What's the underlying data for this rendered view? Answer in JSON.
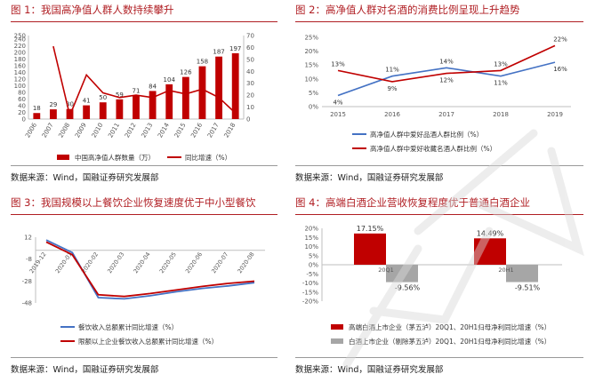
{
  "panels": {
    "p1": {
      "title": "图 1：我国高净值人群人数持续攀升",
      "source": "数据来源：Wind，国融证券研究发展部"
    },
    "p2": {
      "title": "图 2：高净值人群对名酒的消费比例呈现上升趋势",
      "source": "数据来源：Wind，国融证券研究发展部"
    },
    "p3": {
      "title": "图 3：我国规模以上餐饮企业恢复速度优于中小型餐饮",
      "source": "数据来源：Wind，国融证券研究发展部"
    },
    "p4": {
      "title": "图 4：高端白酒企业营收恢复程度优于普通白酒企业",
      "source": "数据来源：Wind，国融证券研究发展部"
    }
  },
  "colors": {
    "red": "#c00000",
    "blue": "#4472c4",
    "gray": "#a6a6a6",
    "title_red": "#b01e23"
  },
  "chart_data": [
    {
      "id": "fig1",
      "type": "bar",
      "categories": [
        "2006",
        "2007",
        "2008",
        "2009",
        "2010",
        "2011",
        "2012",
        "2013",
        "2014",
        "2015",
        "2016",
        "2017",
        "2018"
      ],
      "series": [
        {
          "name": "中国高净值人群数量（万）",
          "type": "bar",
          "axis": "left",
          "values": [
            18,
            29,
            30,
            41,
            50,
            59,
            71,
            84,
            104,
            126,
            158,
            187,
            197
          ]
        },
        {
          "name": "同比增速（%）",
          "type": "line",
          "axis": "right",
          "values": [
            null,
            61,
            3,
            37,
            22,
            18,
            20,
            18,
            24,
            21,
            25,
            18,
            5
          ]
        }
      ],
      "yticks_left": [
        "0",
        "20",
        "40",
        "60",
        "80",
        "100",
        "120",
        "140",
        "160",
        "180",
        "200",
        "220",
        "240",
        "250"
      ],
      "ylim_left": [
        0,
        250
      ],
      "yticks_right": [
        "0",
        "10",
        "20",
        "30",
        "40",
        "50",
        "60",
        "70"
      ],
      "ylim_right": [
        0,
        70
      ],
      "legend": "bottom"
    },
    {
      "id": "fig2",
      "type": "line",
      "categories": [
        "2015",
        "2016",
        "2017",
        "2018",
        "2019"
      ],
      "series": [
        {
          "name": "高净值人群中爱好品酒人群比例（%）",
          "color": "blue",
          "values": [
            4,
            11,
            14,
            11,
            16
          ],
          "labels": [
            "4%",
            "11%",
            "14%",
            "11%",
            "16%"
          ]
        },
        {
          "name": "高净值人群中爱好收藏名酒人群比例（%）",
          "color": "red",
          "values": [
            13,
            9,
            12,
            13,
            22
          ],
          "labels": [
            "13%",
            "9%",
            "12%",
            "13%",
            "22%"
          ]
        }
      ],
      "yticks": [
        "0%",
        "5%",
        "10%",
        "15%",
        "20%",
        "25%"
      ],
      "ylim": [
        0,
        25
      ],
      "legend": "bottom"
    },
    {
      "id": "fig3",
      "type": "line",
      "categories": [
        "2019-12",
        "2020-01",
        "2020-02",
        "2020-03",
        "2020-04",
        "2020-05",
        "2020-06",
        "2020-07",
        "2020-08"
      ],
      "series": [
        {
          "name": "餐饮收入总额累计同比增速（%）",
          "color": "blue",
          "values": [
            9.4,
            -2,
            -43.1,
            -44.3,
            -41.4,
            -37.8,
            -34.7,
            -32.4,
            -29.5
          ]
        },
        {
          "name": "限额以上企业餐饮收入总额累计同比增速（%）",
          "color": "red",
          "values": [
            7.6,
            -4,
            -40.5,
            -42.1,
            -39.4,
            -36.2,
            -32.9,
            -30.2,
            -28.1
          ]
        }
      ],
      "yticks": [
        "12",
        "-8",
        "-28",
        "-48"
      ],
      "ylim": [
        -48,
        12
      ],
      "legend": "bottom"
    },
    {
      "id": "fig4",
      "type": "bar",
      "categories": [
        "20Q1",
        "20H1"
      ],
      "series": [
        {
          "name": "高端白酒上市企业（茅五泸）20Q1、20H1归母净利同比增速（%）",
          "color": "red",
          "values": [
            17.15,
            14.49
          ],
          "labels": [
            "17.15%",
            "14.49%"
          ]
        },
        {
          "name": "白酒上市企业（剔除茅五泸）20Q1、20H1归母净利同比增速（%）",
          "color": "gray",
          "values": [
            -9.56,
            -9.51
          ],
          "labels": [
            "-9.56%",
            "-9.51%"
          ]
        }
      ],
      "yticks": [
        "20%",
        "15%",
        "10%",
        "5%",
        "0%",
        "-5%",
        "-10%",
        "-15%",
        "-20%"
      ],
      "ylim": [
        -20,
        20
      ],
      "legend": "bottom"
    }
  ]
}
